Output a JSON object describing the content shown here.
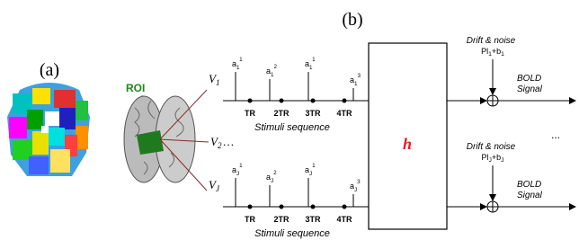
{
  "panel_a": {
    "label": "(a)"
  },
  "panel_b": {
    "label": "(b)",
    "roi": "ROI",
    "filter": "h",
    "ellipsis": "...",
    "middle_voxel": {
      "base": "V",
      "sub": "2",
      "after": "…"
    },
    "rows": [
      {
        "voxel": {
          "base": "V",
          "sub": "1"
        },
        "amplitudes": [
          {
            "base": "a",
            "sub": "1",
            "sup": "1"
          },
          {
            "base": "a",
            "sub": "1",
            "sup": "2"
          },
          {
            "base": "a",
            "sub": "1",
            "sup": "1"
          },
          {
            "base": "a",
            "sub": "1",
            "sup": "3"
          }
        ],
        "ticks": [
          "TR",
          "2TR",
          "3TR",
          "4TR"
        ],
        "sequence_label": "Stimuli sequence",
        "noise_label": "Drift & noise",
        "noise_formula": [
          {
            "text": "Pl"
          },
          {
            "sub": "1"
          },
          {
            "text": "+b"
          },
          {
            "sub": "1"
          }
        ],
        "output_label": [
          "BOLD",
          "Signal"
        ]
      },
      {
        "voxel": {
          "base": "V",
          "sub": "J"
        },
        "amplitudes": [
          {
            "base": "a",
            "sub": "J",
            "sup": "1"
          },
          {
            "base": "a",
            "sub": "J",
            "sup": "2"
          },
          {
            "base": "a",
            "sub": "J",
            "sup": "1"
          },
          {
            "base": "a",
            "sub": "J",
            "sup": "3"
          }
        ],
        "ticks": [
          "TR",
          "2TR",
          "3TR",
          "4TR"
        ],
        "sequence_label": "Stimuli sequence",
        "noise_label": "Drift & noise",
        "noise_formula": [
          {
            "text": "Pl"
          },
          {
            "sub": "J"
          },
          {
            "text": "+b"
          },
          {
            "sub": "J"
          }
        ],
        "output_label": [
          "BOLD",
          "Signal"
        ]
      }
    ]
  }
}
